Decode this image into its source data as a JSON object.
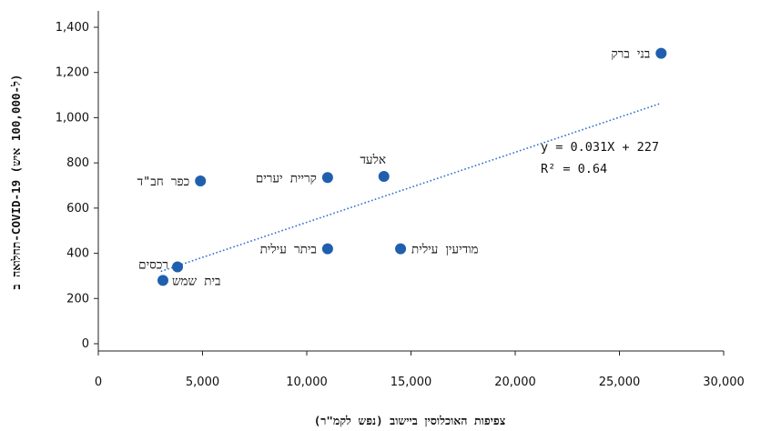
{
  "chart_data": {
    "type": "scatter",
    "title": "",
    "xlabel": "צפיפות האוכלוסין ביישוב (נפש לקמ\"ר)",
    "ylabel": "תחלואה ב-COVID-19 (ל-100,000 איש)",
    "xlim": [
      0,
      30000
    ],
    "ylim": [
      0,
      1400
    ],
    "x_ticks": [
      0,
      5000,
      10000,
      15000,
      20000,
      25000,
      30000
    ],
    "x_tick_labels": [
      "0",
      "5,000",
      "10,000",
      "15,000",
      "20,000",
      "25,000",
      "30,000"
    ],
    "y_ticks": [
      0,
      200,
      400,
      600,
      800,
      1000,
      1200,
      1400
    ],
    "y_tick_labels": [
      "0",
      "200",
      "400",
      "600",
      "800",
      "1,000",
      "1,200",
      "1,400"
    ],
    "grid": false,
    "marker_color": "#1f5fae",
    "trendline_color": "#2f6fd0",
    "points": [
      {
        "label": "בני ברק",
        "x": 27000,
        "y": 1285
      },
      {
        "label": "אלעד",
        "x": 13700,
        "y": 740
      },
      {
        "label": "קריית יערים",
        "x": 11000,
        "y": 735
      },
      {
        "label": "כפר חב\"ד",
        "x": 4900,
        "y": 720
      },
      {
        "label": "ביתר עילית",
        "x": 11000,
        "y": 420
      },
      {
        "label": "מודיעין עילית",
        "x": 14500,
        "y": 420
      },
      {
        "label": "רכסים",
        "x": 3800,
        "y": 340
      },
      {
        "label": "בית שמש",
        "x": 3100,
        "y": 280
      }
    ],
    "trendline": {
      "slope": 0.031,
      "intercept": 227,
      "x_range": [
        3000,
        27000
      ],
      "equation_text": "y = 0.031X + 227",
      "r2_text": "R² = 0.64"
    }
  }
}
